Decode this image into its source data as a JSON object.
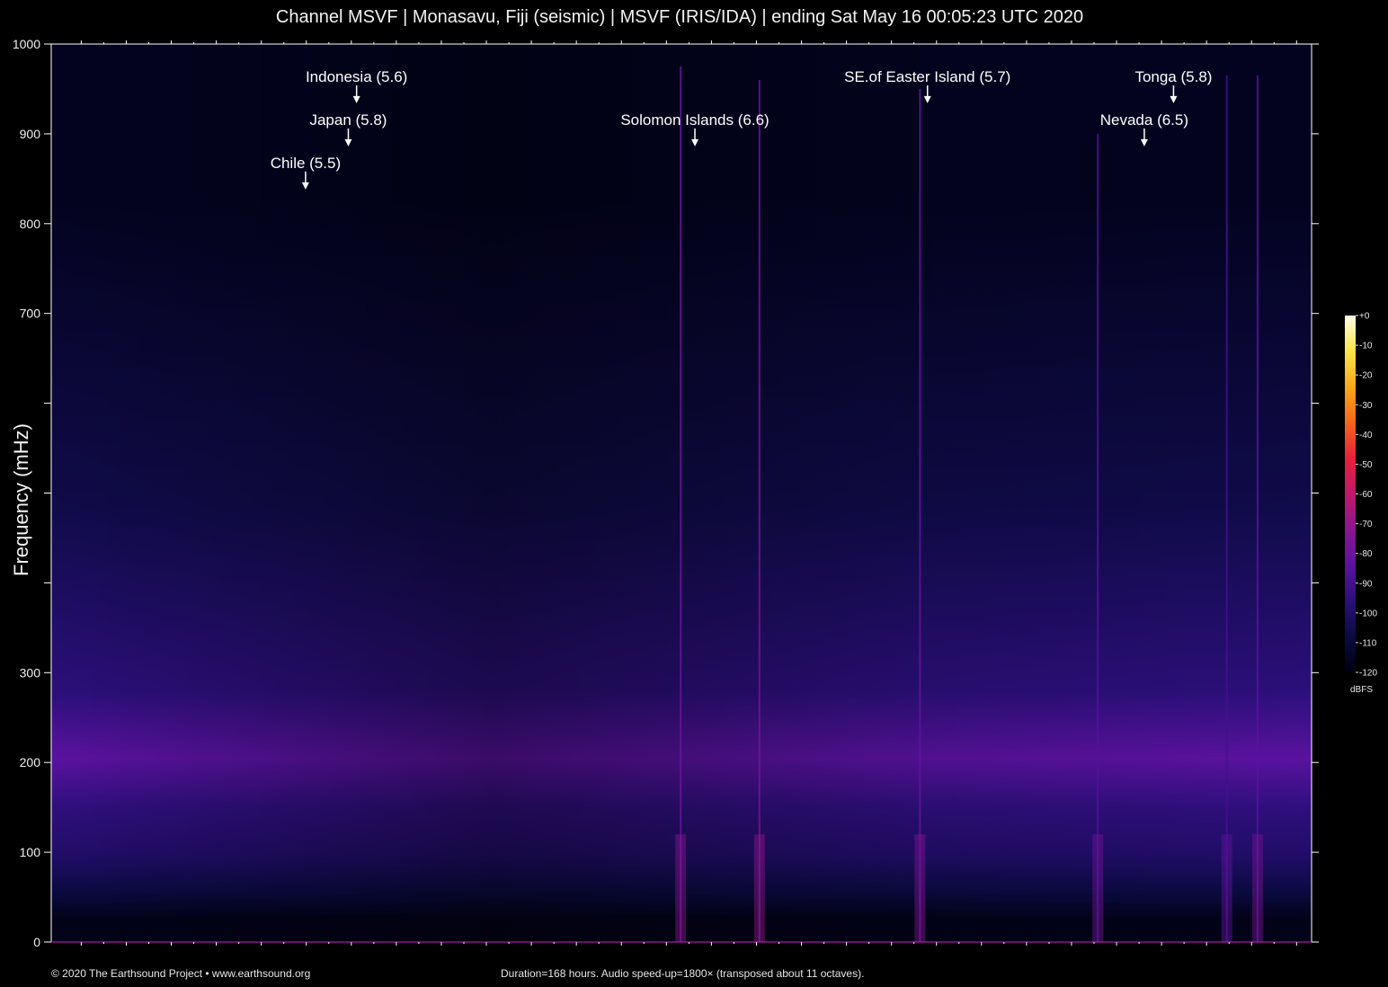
{
  "title": "Channel MSVF | Monasavu, Fiji (seismic) | MSVF (IRIS/IDA) | ending Sat May 16 00:05:23 UTC 2020",
  "credit": "© 2020 The Earthsound Project • www.earthsound.org",
  "note": "Duration=168 hours. Audio speed-up=1800× (transposed about 11 octaves).",
  "colors": {
    "background": "#000000",
    "frame": "#ffffff",
    "colormap": [
      "#000010",
      "#0a0a40",
      "#2b0f7a",
      "#5a12a0",
      "#8a1690",
      "#c0186a",
      "#e8203a",
      "#f5641a",
      "#f8a81a",
      "#fbe44a",
      "#fffde8"
    ]
  },
  "chart_data": {
    "type": "heatmap",
    "title": "Channel MSVF | Monasavu, Fiji (seismic) | MSVF (IRIS/IDA) | ending Sat May 16 00:05:23 UTC 2020",
    "xlabel": "",
    "ylabel": "Frequency (mHz)",
    "ylim": [
      0,
      1000
    ],
    "xlim": [
      0,
      168
    ],
    "x_unit": "hours",
    "y_ticks": [
      0,
      100,
      200,
      300,
      400,
      500,
      600,
      700,
      800,
      900,
      1000
    ],
    "y_tick_labels": [
      "0",
      "100",
      "200",
      "300",
      "",
      "",
      "",
      "700",
      "800",
      "900",
      "1000"
    ],
    "x_major_ticks": [
      4,
      10,
      16,
      22,
      28,
      34,
      40,
      46,
      52,
      58,
      64,
      70,
      76,
      82,
      88,
      94,
      100,
      106,
      112,
      118,
      124,
      130,
      136,
      142,
      148,
      154,
      160,
      166
    ],
    "colorbar": {
      "label": "dBFS",
      "range": [
        -120,
        0
      ],
      "ticks": [
        0,
        -10,
        -20,
        -30,
        -40,
        -50,
        -60,
        -70,
        -80,
        -90,
        -100,
        -110,
        -120
      ],
      "tick_labels": [
        "+0",
        "-10",
        "-20",
        "-30",
        "-40",
        "-50",
        "-60",
        "-70",
        "-80",
        "-90",
        "-100",
        "-110",
        "-120"
      ]
    },
    "background_bands": [
      {
        "from": 0,
        "to": 50,
        "level": -118
      },
      {
        "from": 50,
        "to": 60,
        "level": -108
      },
      {
        "from": 60,
        "to": 130,
        "level": -100
      },
      {
        "from": 130,
        "to": 170,
        "level": -95
      },
      {
        "from": 170,
        "to": 240,
        "level": -84
      },
      {
        "from": 240,
        "to": 320,
        "level": -96
      },
      {
        "from": 320,
        "to": 650,
        "level": -106
      },
      {
        "from": 650,
        "to": 1000,
        "level": -116
      }
    ],
    "events": [
      {
        "label": "Chile (5.5)",
        "x": 33.9,
        "arrow_y": 840
      },
      {
        "label": "Japan (5.8)",
        "x": 39.6,
        "arrow_y": 888
      },
      {
        "label": "Indonesia (5.6)",
        "x": 40.7,
        "arrow_y": 936
      },
      {
        "label": "Solomon Islands (6.6)",
        "x": 85.8,
        "arrow_y": 888
      },
      {
        "label": "SE.of Easter Island (5.7)",
        "x": 116.8,
        "arrow_y": 936
      },
      {
        "label": "Nevada (6.5)",
        "x": 145.7,
        "arrow_y": 888
      },
      {
        "label": "Tonga (5.8)",
        "x": 149.6,
        "arrow_y": 936
      }
    ],
    "streaks": [
      {
        "x": 83.9,
        "top": 975,
        "level": -80
      },
      {
        "x": 94.4,
        "top": 960,
        "level": -78
      },
      {
        "x": 115.8,
        "top": 950,
        "level": -82
      },
      {
        "x": 139.5,
        "top": 900,
        "level": -86
      },
      {
        "x": 156.7,
        "top": 965,
        "level": -90
      },
      {
        "x": 160.8,
        "top": 965,
        "level": -84
      }
    ]
  }
}
